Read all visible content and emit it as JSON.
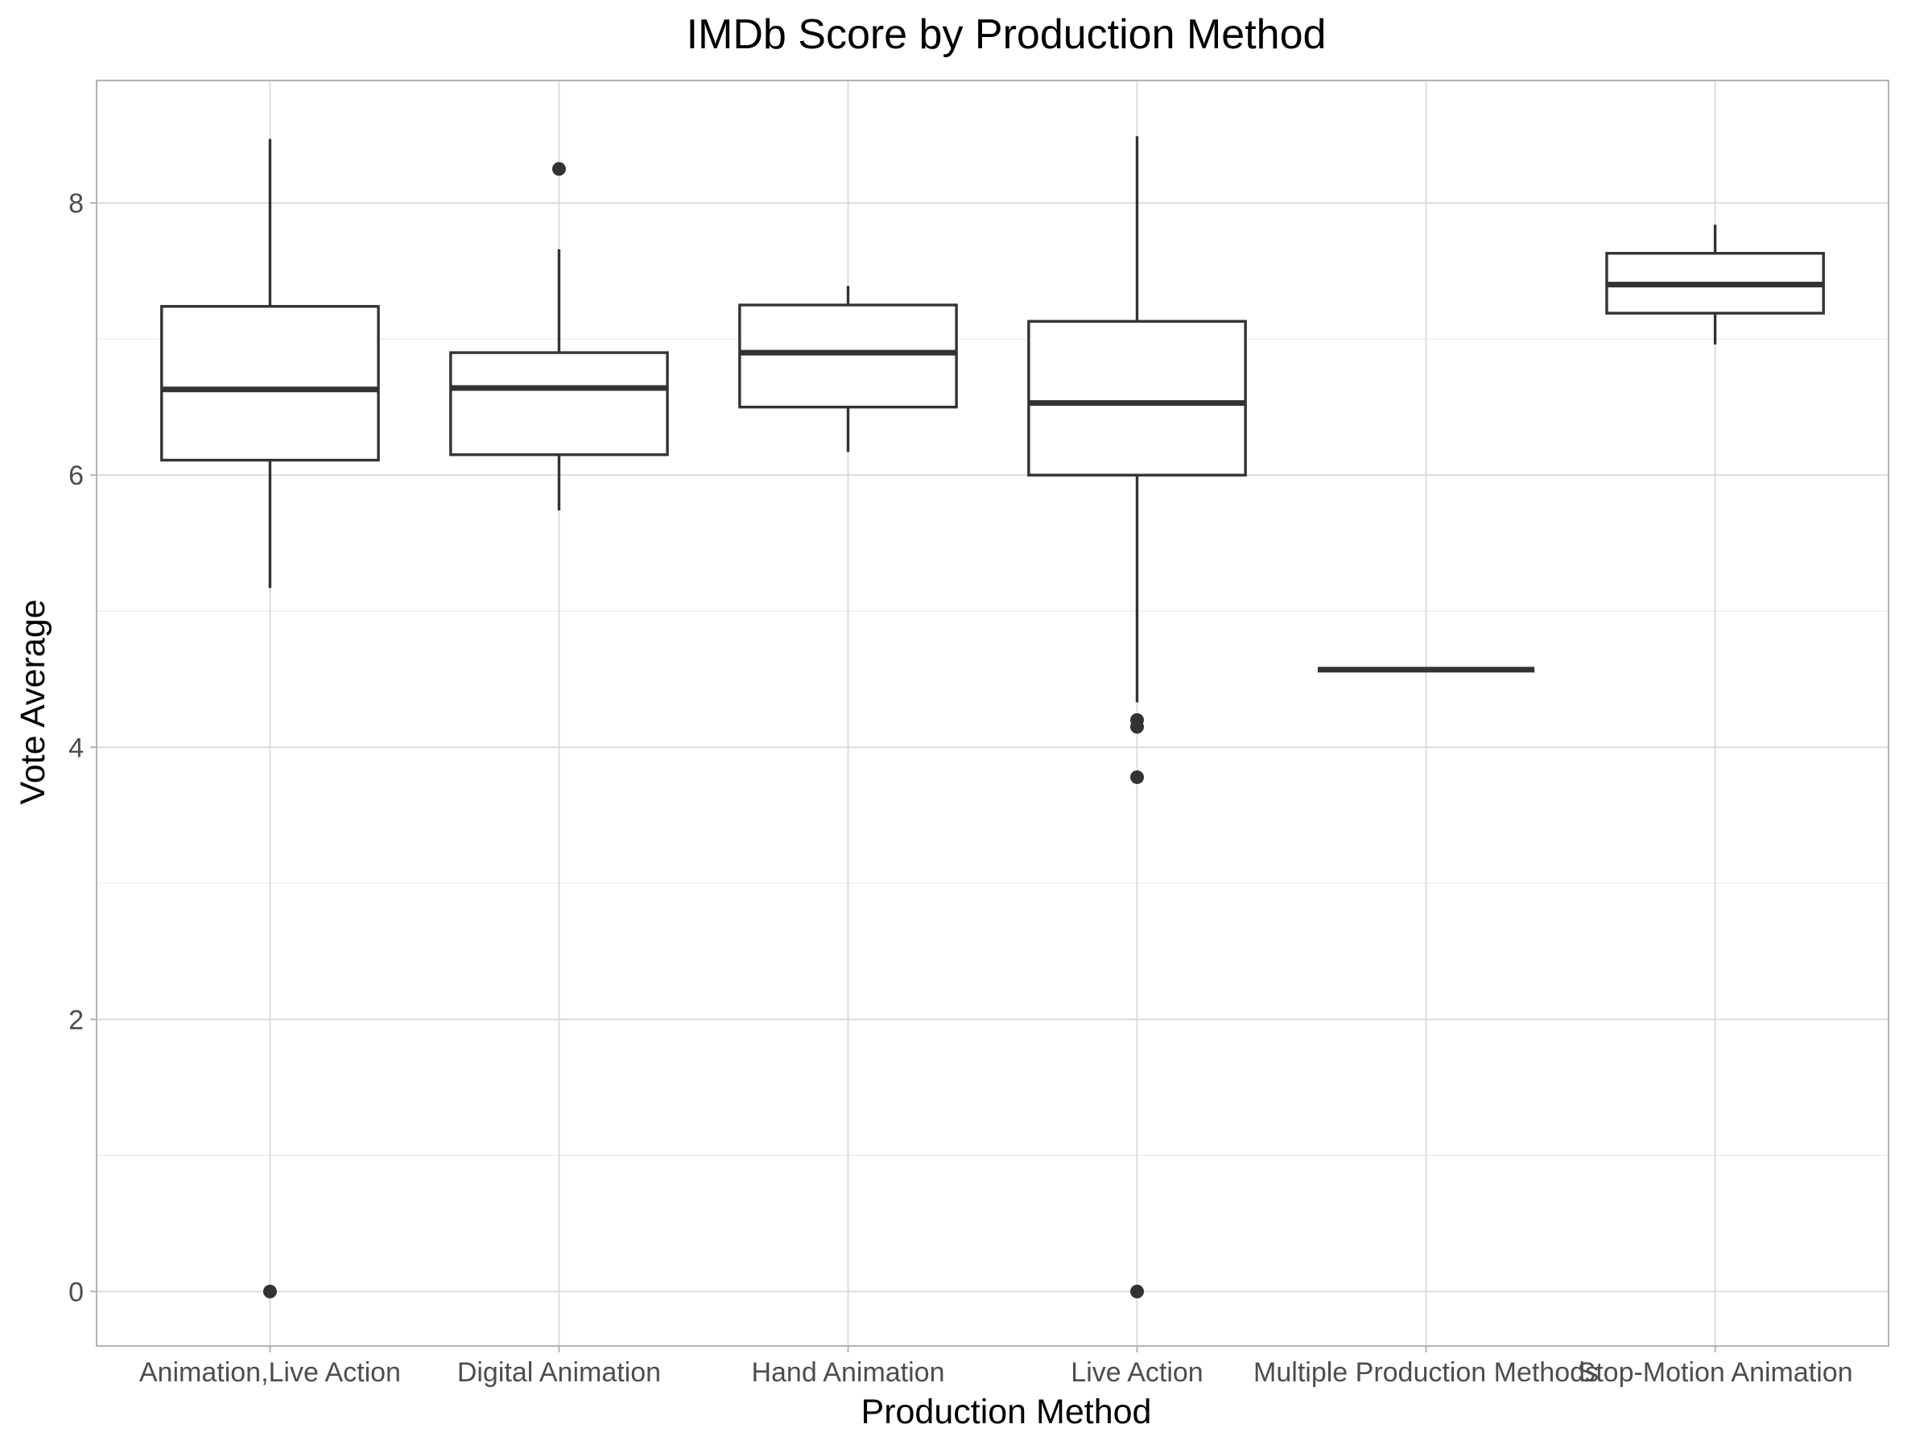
{
  "chart_data": {
    "type": "box",
    "title": "IMDb Score by Production Method",
    "xlabel": "Production Method",
    "ylabel": "Vote Average",
    "ylim": [
      -0.4,
      8.9
    ],
    "yticks": [
      0,
      2,
      4,
      6,
      8
    ],
    "grid": true,
    "categories": [
      "Animation,Live Action",
      "Digital Animation",
      "Hand Animation",
      "Live Action",
      "Multiple Production Methods",
      "Stop-Motion Animation"
    ],
    "boxes": [
      {
        "category": "Animation,Live Action",
        "min": 5.17,
        "q1": 6.11,
        "median": 6.63,
        "q3": 7.24,
        "max": 8.47,
        "outliers": [
          0.0
        ]
      },
      {
        "category": "Digital Animation",
        "min": 5.74,
        "q1": 6.15,
        "median": 6.64,
        "q3": 6.9,
        "max": 7.66,
        "outliers": [
          8.25
        ]
      },
      {
        "category": "Hand Animation",
        "min": 6.17,
        "q1": 6.5,
        "median": 6.9,
        "q3": 7.25,
        "max": 7.39,
        "outliers": []
      },
      {
        "category": "Live Action",
        "min": 4.33,
        "q1": 6.0,
        "median": 6.53,
        "q3": 7.13,
        "max": 8.49,
        "outliers": [
          4.2,
          4.15,
          3.78,
          0.0
        ]
      },
      {
        "category": "Multiple Production Methods",
        "min": 4.57,
        "q1": 4.57,
        "median": 4.57,
        "q3": 4.57,
        "max": 4.57,
        "outliers": []
      },
      {
        "category": "Stop-Motion Animation",
        "min": 6.96,
        "q1": 7.19,
        "median": 7.4,
        "q3": 7.63,
        "max": 7.84,
        "outliers": []
      }
    ]
  }
}
